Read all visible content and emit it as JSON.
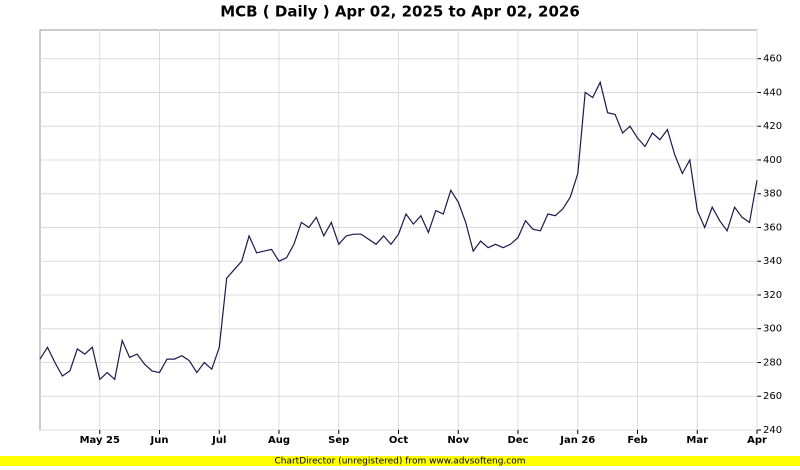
{
  "chart_data": {
    "type": "line",
    "title": "MCB ( Daily ) Apr 02, 2025 to Apr 02, 2026",
    "footer": "ChartDirector (unregistered) from www.advsofteng.com",
    "categories": [
      null,
      null,
      null,
      null,
      null,
      null,
      null,
      null,
      "May 25",
      null,
      null,
      null,
      null,
      null,
      null,
      null,
      "Jun",
      null,
      null,
      null,
      null,
      null,
      null,
      null,
      "Jul",
      null,
      null,
      null,
      null,
      null,
      null,
      null,
      "Aug",
      null,
      null,
      null,
      null,
      null,
      null,
      null,
      "Sep",
      null,
      null,
      null,
      null,
      null,
      null,
      null,
      "Oct",
      null,
      null,
      null,
      null,
      null,
      null,
      null,
      "Nov",
      null,
      null,
      null,
      null,
      null,
      null,
      null,
      "Dec",
      null,
      null,
      null,
      null,
      null,
      null,
      null,
      "Jan 26",
      null,
      null,
      null,
      null,
      null,
      null,
      null,
      "Feb",
      null,
      null,
      null,
      null,
      null,
      null,
      null,
      "Mar",
      null,
      null,
      null,
      null,
      null,
      null,
      null,
      "Apr"
    ],
    "series": [
      {
        "name": "MCB",
        "color": "#1a1a4e",
        "values": [
          282,
          289,
          280,
          272,
          275,
          288,
          285,
          289,
          270,
          274,
          270,
          293,
          283,
          285,
          279,
          275,
          274,
          282,
          282,
          284,
          281,
          274,
          280,
          276,
          289,
          330,
          335,
          340,
          355,
          345,
          346,
          347,
          340,
          342,
          350,
          363,
          360,
          366,
          355,
          363,
          350,
          355,
          356,
          356,
          353,
          350,
          355,
          350,
          356,
          368,
          362,
          367,
          357,
          370,
          368,
          382,
          375,
          363,
          346,
          352,
          348,
          350,
          348,
          350,
          354,
          364,
          359,
          358,
          368,
          367,
          371,
          378,
          392,
          440,
          437,
          446,
          428,
          427,
          416,
          420,
          413,
          408,
          416,
          412,
          418,
          403,
          392,
          400,
          370,
          360,
          372,
          364,
          358,
          372,
          366,
          363,
          388
        ]
      }
    ],
    "ylim": [
      240,
      477
    ],
    "yticks": [
      240,
      260,
      280,
      300,
      320,
      340,
      360,
      380,
      400,
      420,
      440,
      460
    ],
    "grid": true
  }
}
